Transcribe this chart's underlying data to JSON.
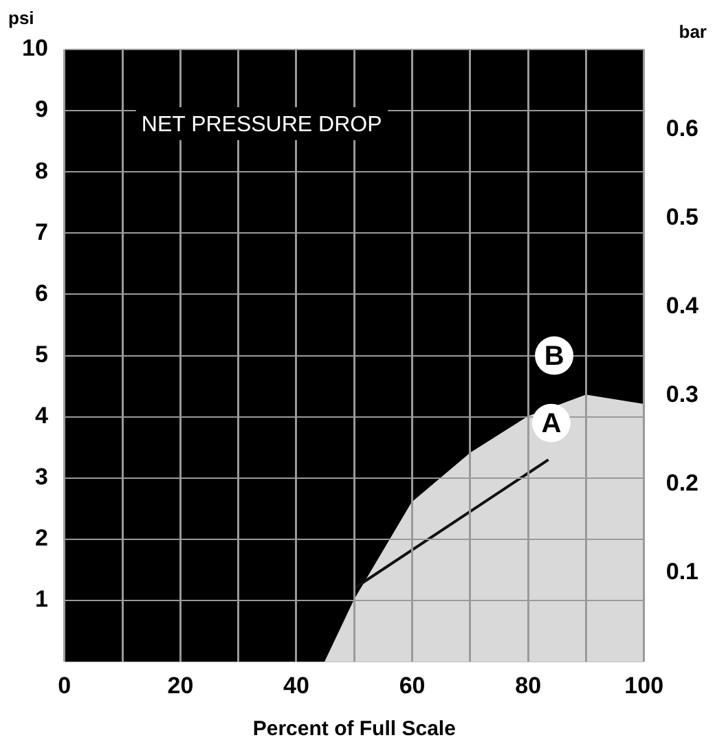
{
  "chart_data": {
    "type": "line",
    "xlabel": "Percent of Full Scale",
    "ylabel": "psi",
    "y2label": "bar",
    "xlim": [
      0,
      100
    ],
    "xticks": [
      0,
      {
        "value": 10,
        "label": null
      },
      20,
      {
        "value": 30,
        "label": null
      },
      40,
      {
        "value": 50,
        "label": null
      },
      60,
      {
        "value": 70,
        "label": null
      },
      80,
      {
        "value": 90,
        "label": null
      },
      100
    ],
    "ylim": [
      0,
      10
    ],
    "yticks": [
      1,
      2,
      3,
      4,
      5,
      6,
      7,
      8,
      9,
      10
    ],
    "y2lim": [
      0,
      0.69
    ],
    "y2ticks": [
      0.1,
      0.2,
      0.3,
      0.4,
      0.5,
      0.6
    ],
    "grid": true,
    "legend": false,
    "series": [
      {
        "type": "area",
        "color": "#d9d9d9",
        "x": [
          45,
          50,
          60,
          70,
          80,
          90,
          100
        ],
        "values": [
          0,
          1.0,
          2.6,
          3.4,
          4.0,
          4.35,
          4.2
        ]
      },
      {
        "type": "line",
        "color": "#111111",
        "x": [
          50,
          83.5
        ],
        "values": [
          1.2,
          3.3
        ]
      }
    ],
    "annotations": [
      "NET PRESSURE DROP",
      {
        "text": "B",
        "x": 84.5,
        "y": 5.0
      },
      {
        "text": "A",
        "x": 84,
        "y": 3.9
      }
    ]
  }
}
